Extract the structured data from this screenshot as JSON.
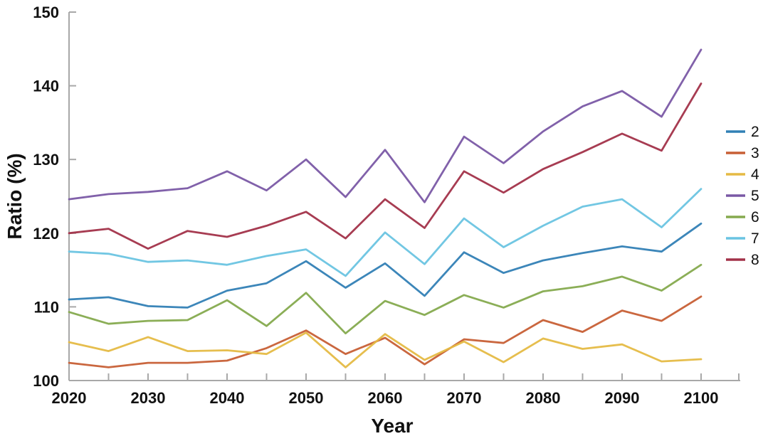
{
  "figure": {
    "background": "#ffffff",
    "axis_color": "#a8a8a8",
    "text_color": "#111111"
  },
  "chart_data": {
    "type": "line",
    "title": "",
    "xlabel": "Year",
    "ylabel": "Ratio (%)",
    "x": [
      2020,
      2025,
      2030,
      2035,
      2040,
      2045,
      2050,
      2055,
      2060,
      2065,
      2070,
      2075,
      2080,
      2085,
      2090,
      2095,
      2100
    ],
    "xlim": [
      2020,
      2105
    ],
    "ylim": [
      100,
      150
    ],
    "x_major_ticks": [
      2020,
      2030,
      2040,
      2050,
      2060,
      2070,
      2080,
      2090,
      2100
    ],
    "x_minor_tick_step": 5,
    "y_ticks": [
      100,
      110,
      120,
      130,
      140,
      150
    ],
    "grid": false,
    "legend_position": "right-outside",
    "legend_entries": [
      "2",
      "3",
      "4",
      "5",
      "6",
      "7",
      "8"
    ],
    "series": [
      {
        "name": "2",
        "color": "#3180b5",
        "values": [
          111.0,
          111.3,
          110.1,
          109.9,
          112.2,
          113.2,
          116.2,
          112.6,
          115.9,
          111.5,
          117.4,
          114.6,
          116.3,
          117.3,
          118.2,
          117.5,
          121.3
        ]
      },
      {
        "name": "3",
        "color": "#c75f35",
        "values": [
          102.4,
          101.8,
          102.4,
          102.4,
          102.7,
          104.4,
          106.8,
          103.6,
          105.8,
          102.2,
          105.6,
          105.1,
          108.2,
          106.6,
          109.5,
          108.1,
          111.4
        ]
      },
      {
        "name": "4",
        "color": "#e5ba44",
        "values": [
          105.2,
          104.0,
          105.9,
          104.0,
          104.1,
          103.6,
          106.5,
          101.8,
          106.3,
          102.8,
          105.3,
          102.5,
          105.7,
          104.3,
          104.9,
          102.6,
          102.9
        ]
      },
      {
        "name": "5",
        "color": "#7a58a5",
        "values": [
          124.6,
          125.3,
          125.6,
          126.1,
          128.4,
          125.8,
          130.0,
          124.9,
          131.3,
          124.2,
          133.1,
          129.5,
          133.8,
          137.2,
          139.3,
          135.8,
          144.9
        ]
      },
      {
        "name": "6",
        "color": "#85aa4e",
        "values": [
          109.3,
          107.7,
          108.1,
          108.2,
          110.9,
          107.4,
          111.9,
          106.4,
          110.8,
          108.9,
          111.6,
          109.9,
          112.1,
          112.8,
          114.1,
          112.2,
          115.7
        ]
      },
      {
        "name": "7",
        "color": "#6ac4e2",
        "values": [
          117.5,
          117.2,
          116.1,
          116.3,
          115.7,
          116.9,
          117.8,
          114.2,
          120.1,
          115.8,
          122.0,
          118.1,
          121.0,
          123.6,
          124.6,
          120.8,
          126.0
        ]
      },
      {
        "name": "8",
        "color": "#a23149",
        "values": [
          120.0,
          120.6,
          117.9,
          120.3,
          119.5,
          121.0,
          122.9,
          119.3,
          124.6,
          120.7,
          128.4,
          125.5,
          128.7,
          131.0,
          133.5,
          131.2,
          140.3
        ]
      }
    ]
  }
}
